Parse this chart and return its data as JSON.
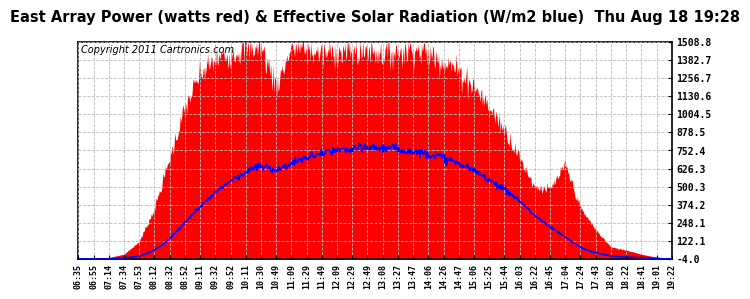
{
  "title": "East Array Power (watts red) & Effective Solar Radiation (W/m2 blue)  Thu Aug 18 19:28",
  "copyright": "Copyright 2011 Cartronics.com",
  "y_ticks": [
    1508.8,
    1382.7,
    1256.7,
    1130.6,
    1004.5,
    878.5,
    752.4,
    626.3,
    500.3,
    374.2,
    248.1,
    122.1,
    -4.0
  ],
  "ylim": [
    -4.0,
    1508.8
  ],
  "x_labels": [
    "06:35",
    "06:55",
    "07:14",
    "07:34",
    "07:53",
    "08:12",
    "08:32",
    "08:52",
    "09:11",
    "09:32",
    "09:52",
    "10:11",
    "10:30",
    "10:49",
    "11:09",
    "11:29",
    "11:49",
    "12:09",
    "12:29",
    "12:49",
    "13:08",
    "13:27",
    "13:47",
    "14:06",
    "14:26",
    "14:47",
    "15:06",
    "15:25",
    "15:44",
    "16:03",
    "16:22",
    "16:45",
    "17:04",
    "17:24",
    "17:43",
    "18:02",
    "18:22",
    "18:41",
    "19:01",
    "19:22"
  ],
  "bg_color": "#ffffff",
  "grid_color": "#bbbbbb",
  "fill_color": "#ff0000",
  "line_color": "#0000ff",
  "title_fontsize": 10.5,
  "copyright_fontsize": 7,
  "power_vals": [
    0,
    2,
    8,
    30,
    120,
    350,
    700,
    1050,
    1280,
    1380,
    1430,
    1460,
    1470,
    1200,
    1470,
    1450,
    1420,
    1440,
    1430,
    1450,
    1430,
    1440,
    1460,
    1420,
    1380,
    1300,
    1200,
    1050,
    900,
    700,
    500,
    480,
    650,
    350,
    200,
    80,
    60,
    30,
    10,
    0
  ],
  "radiation_vals": [
    -4,
    -4,
    -4,
    5,
    20,
    60,
    140,
    250,
    360,
    460,
    540,
    600,
    640,
    620,
    660,
    700,
    730,
    750,
    760,
    770,
    770,
    760,
    745,
    730,
    700,
    660,
    610,
    550,
    480,
    400,
    300,
    220,
    150,
    80,
    40,
    20,
    10,
    5,
    0,
    -4
  ]
}
